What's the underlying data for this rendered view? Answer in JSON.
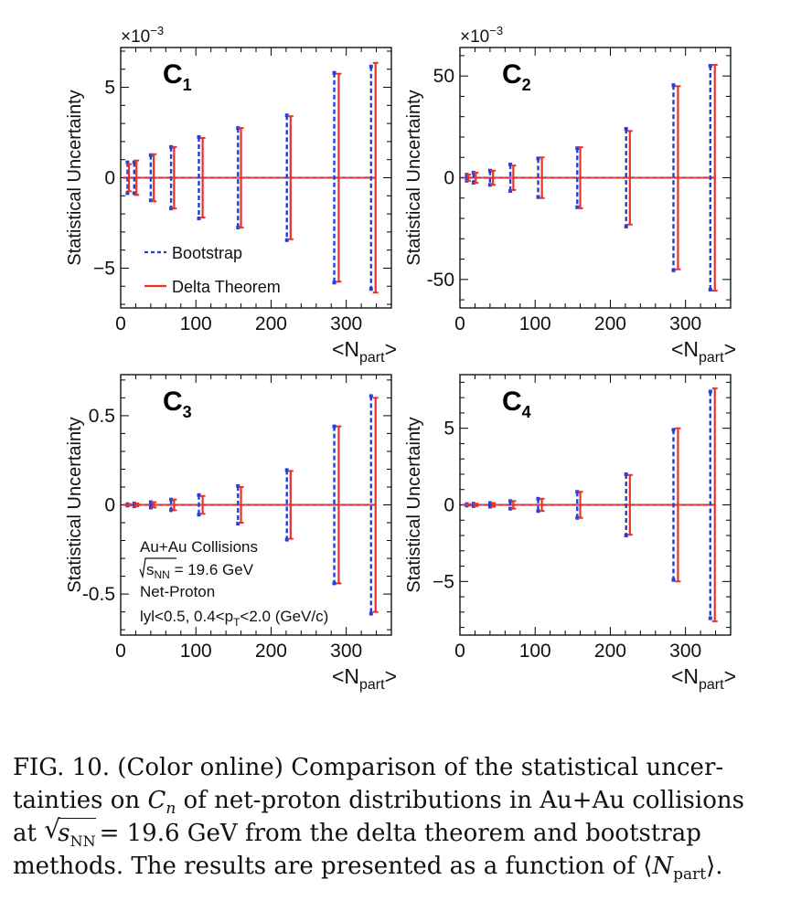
{
  "chart_data": [
    {
      "type": "errorbar",
      "panel_label": "C",
      "panel_sub": "1",
      "multiplier_base": "×10",
      "multiplier_exp": "−3",
      "ylabel": "Statistical Uncertainty",
      "xlabel_main": "<N",
      "xlabel_sub": "part",
      "xlabel_close": ">",
      "xlim": [
        0,
        360
      ],
      "ylim": [
        -7.2,
        7.2
      ],
      "xticks": [
        0,
        100,
        200,
        300
      ],
      "xtick_labels": [
        "0",
        "100",
        "200",
        "300"
      ],
      "yticks": [
        -5,
        0,
        5
      ],
      "ytick_labels": [
        "−5",
        "0",
        "5"
      ],
      "legend": [
        "Bootstrap",
        "Delta Theorem"
      ],
      "series": [
        {
          "name": "Bootstrap",
          "color": "#1f3fe0",
          "dash": true,
          "x": [
            9,
            18,
            40,
            67,
            104,
            156,
            221,
            284,
            333
          ],
          "y": [
            0.85,
            0.85,
            1.25,
            1.7,
            2.25,
            2.75,
            3.45,
            5.8,
            6.15
          ]
        },
        {
          "name": "Delta Theorem",
          "color": "#e8332a",
          "dash": false,
          "x": [
            11,
            21,
            44,
            71,
            109,
            160,
            226,
            290,
            339
          ],
          "y": [
            0.75,
            0.95,
            1.3,
            1.7,
            2.2,
            2.75,
            3.4,
            5.75,
            6.35
          ]
        }
      ]
    },
    {
      "type": "errorbar",
      "panel_label": "C",
      "panel_sub": "2",
      "multiplier_base": "×10",
      "multiplier_exp": "−3",
      "ylabel": "Statistical Uncertainty",
      "xlabel_main": "<N",
      "xlabel_sub": "part",
      "xlabel_close": ">",
      "xlim": [
        0,
        360
      ],
      "ylim": [
        -64,
        64
      ],
      "xticks": [
        0,
        100,
        200,
        300
      ],
      "xtick_labels": [
        "0",
        "100",
        "200",
        "300"
      ],
      "yticks": [
        -50,
        0,
        50
      ],
      "ytick_labels": [
        "-50",
        "0",
        "50"
      ],
      "series": [
        {
          "name": "Bootstrap",
          "color": "#1f3fe0",
          "dash": true,
          "x": [
            9,
            18,
            40,
            67,
            104,
            156,
            221,
            284,
            333
          ],
          "y": [
            1.5,
            2.5,
            3.5,
            6.5,
            9.5,
            14.5,
            24,
            45.5,
            55
          ]
        },
        {
          "name": "Delta Theorem",
          "color": "#e8332a",
          "dash": false,
          "x": [
            11,
            21,
            44,
            71,
            109,
            160,
            226,
            290,
            339
          ],
          "y": [
            1.5,
            2.5,
            3.5,
            6.0,
            10.0,
            15.0,
            23,
            45,
            55.5
          ]
        }
      ]
    },
    {
      "type": "errorbar",
      "panel_label": "C",
      "panel_sub": "3",
      "ylabel": "Statistical Uncertainty",
      "xlabel_main": "<N",
      "xlabel_sub": "part",
      "xlabel_close": ">",
      "xlim": [
        0,
        360
      ],
      "ylim": [
        -0.73,
        0.73
      ],
      "xticks": [
        0,
        100,
        200,
        300
      ],
      "xtick_labels": [
        "0",
        "100",
        "200",
        "300"
      ],
      "yticks": [
        -0.5,
        0,
        0.5
      ],
      "ytick_labels": [
        "-0.5",
        "0",
        "0.5"
      ],
      "annotation": {
        "line1": "Au+Au Collisions",
        "line2_pre": "s",
        "line2_sub": "NN",
        "line2_post": " = 19.6 GeV",
        "line3": "Net-Proton",
        "line4_pre": "lyl<0.5, 0.4<p",
        "line4_sub": "T",
        "line4_post": "<2.0 (GeV/c)"
      },
      "series": [
        {
          "name": "Bootstrap",
          "color": "#1f3fe0",
          "dash": true,
          "x": [
            9,
            18,
            40,
            67,
            104,
            156,
            221,
            284,
            333
          ],
          "y": [
            0.004,
            0.008,
            0.015,
            0.03,
            0.055,
            0.105,
            0.195,
            0.44,
            0.61
          ]
        },
        {
          "name": "Delta Theorem",
          "color": "#e8332a",
          "dash": false,
          "x": [
            11,
            21,
            44,
            71,
            109,
            160,
            226,
            290,
            339
          ],
          "y": [
            0.004,
            0.008,
            0.015,
            0.03,
            0.05,
            0.1,
            0.19,
            0.44,
            0.6
          ]
        }
      ]
    },
    {
      "type": "errorbar",
      "panel_label": "C",
      "panel_sub": "4",
      "ylabel": "Statistical Uncertainty",
      "xlabel_main": "<N",
      "xlabel_sub": "part",
      "xlabel_close": ">",
      "xlim": [
        0,
        360
      ],
      "ylim": [
        -8.5,
        8.5
      ],
      "xticks": [
        0,
        100,
        200,
        300
      ],
      "xtick_labels": [
        "0",
        "100",
        "200",
        "300"
      ],
      "yticks": [
        -5,
        0,
        5
      ],
      "ytick_labels": [
        "−5",
        "0",
        "5"
      ],
      "series": [
        {
          "name": "Bootstrap",
          "color": "#1f3fe0",
          "dash": true,
          "x": [
            9,
            18,
            40,
            67,
            104,
            156,
            221,
            284,
            333
          ],
          "y": [
            0.05,
            0.08,
            0.12,
            0.25,
            0.4,
            0.85,
            2.0,
            4.9,
            7.4
          ]
        },
        {
          "name": "Delta Theorem",
          "color": "#e8332a",
          "dash": false,
          "x": [
            11,
            21,
            44,
            71,
            109,
            160,
            226,
            290,
            339
          ],
          "y": [
            0.05,
            0.08,
            0.12,
            0.25,
            0.4,
            0.85,
            1.95,
            5.0,
            7.6
          ]
        }
      ]
    }
  ],
  "caption": {
    "line1": "FIG. 10. (Color online) Comparison of the statistical uncer-",
    "line2_pre": "tainties on ",
    "line2_var": "C",
    "line2_sub": "n",
    "line2_post": " of net-proton distributions in Au+Au collisions",
    "line3_pre": "at ",
    "line3_root": "s",
    "line3_sub": "NN",
    "line3_post": "= 19.6 GeV from the delta theorem and bootstrap",
    "line4_pre": "methods. The results are presented as a function of ",
    "line4_lang": "⟨",
    "line4_var": "N",
    "line4_sub": "part",
    "line4_post": "⟩."
  }
}
